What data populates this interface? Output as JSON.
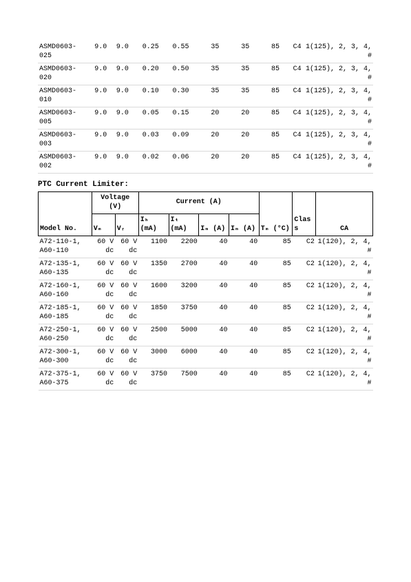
{
  "table1": {
    "col_widths_pct": [
      14.5,
      6.5,
      6.5,
      9,
      9,
      9,
      9,
      9,
      6.5,
      21
    ],
    "rows": [
      [
        "ASMD0603-025",
        "9.0",
        "9.0",
        "0.25",
        "0.55",
        "35",
        "35",
        "85",
        "C4",
        "1(125), 2, 3, 4, #"
      ],
      [
        "ASMD0603-020",
        "9.0",
        "9.0",
        "0.20",
        "0.50",
        "35",
        "35",
        "85",
        "C4",
        "1(125), 2, 3, 4, #"
      ],
      [
        "ASMD0603-010",
        "9.0",
        "9.0",
        "0.10",
        "0.30",
        "35",
        "35",
        "85",
        "C4",
        "1(125), 2, 3, 4, #"
      ],
      [
        "ASMD0603-005",
        "9.0",
        "9.0",
        "0.05",
        "0.15",
        "20",
        "20",
        "85",
        "C4",
        "1(125), 2, 3, 4, #"
      ],
      [
        "ASMD0603-003",
        "9.0",
        "9.0",
        "0.03",
        "0.09",
        "20",
        "20",
        "85",
        "C4",
        "1(125), 2, 3, 4, #"
      ],
      [
        "ASMD0603-002",
        "9.0",
        "9.0",
        "0.02",
        "0.06",
        "20",
        "20",
        "85",
        "C4",
        "1(125), 2, 3, 4, #"
      ]
    ]
  },
  "section_title": "PTC Current Limiter:",
  "table2": {
    "col_widths_pct": [
      16,
      7,
      7,
      9,
      9,
      9,
      9,
      10,
      7,
      17
    ],
    "header_group": {
      "model": "Model No.",
      "voltage": "Voltage (V)",
      "current": "Current (A)",
      "vmax": "Vₘ",
      "vr": "Vᵣ",
      "ih": "Iₕ (mA)",
      "it": "Iₜ (mA)",
      "imax1": "Iₘ (A)",
      "imax2": "Iₘ (A)",
      "tmax": "Tₘ (°C)",
      "class": "Class",
      "ca": "CA"
    },
    "rows": [
      [
        "A72-110-1, A60-110",
        "60 V dc",
        "60 V dc",
        "1100",
        "2200",
        "40",
        "40",
        "85",
        "C2",
        "1(120), 2, 4, #"
      ],
      [
        "A72-135-1, A60-135",
        "60 V dc",
        "60 V dc",
        "1350",
        "2700",
        "40",
        "40",
        "85",
        "C2",
        "1(120), 2, 4, #"
      ],
      [
        "A72-160-1, A60-160",
        "60 V dc",
        "60 V dc",
        "1600",
        "3200",
        "40",
        "40",
        "85",
        "C2",
        "1(120), 2, 4, #"
      ],
      [
        "A72-185-1, A60-185",
        "60 V dc",
        "60 V dc",
        "1850",
        "3750",
        "40",
        "40",
        "85",
        "C2",
        "1(120), 2, 4, #"
      ],
      [
        "A72-250-1, A60-250",
        "60 V dc",
        "60 V dc",
        "2500",
        "5000",
        "40",
        "40",
        "85",
        "C2",
        "1(120), 2, 4, #"
      ],
      [
        "A72-300-1, A60-300",
        "60 V dc",
        "60 V dc",
        "3000",
        "6000",
        "40",
        "40",
        "85",
        "C2",
        "1(120), 2, 4, #"
      ],
      [
        "A72-375-1, A60-375",
        "60 V dc",
        "60 V dc",
        "3750",
        "7500",
        "40",
        "40",
        "85",
        "C2",
        "1(120), 2, 4, #"
      ]
    ]
  }
}
